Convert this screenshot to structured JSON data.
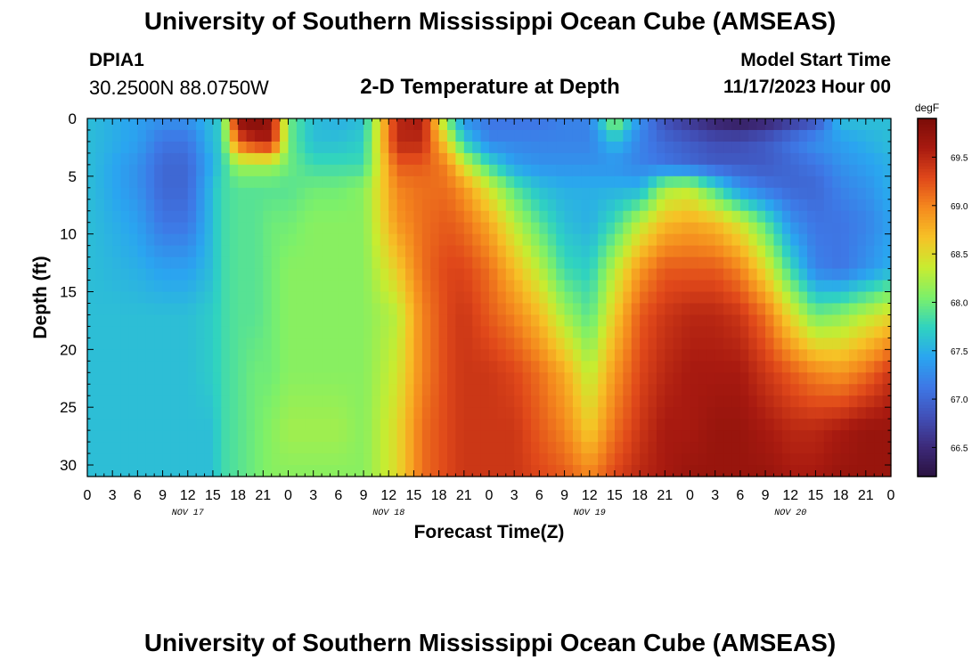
{
  "header": {
    "title": "University of Southern Mississippi Ocean Cube (AMSEAS)",
    "station": "DPIA1",
    "coords": "30.2500N  88.0750W",
    "subtitle": "2-D Temperature at Depth",
    "model_start_label": "Model Start Time",
    "model_start_value": "11/17/2023 Hour 00"
  },
  "footer": {
    "title": "University of Southern Mississippi Ocean Cube (AMSEAS)"
  },
  "chart_data": {
    "type": "heatmap",
    "xlabel": "Forecast Time(Z)",
    "ylabel": "Depth (ft)",
    "x_range_hours": [
      0,
      96
    ],
    "x_tick_labels": [
      "0",
      "3",
      "6",
      "9",
      "12",
      "15",
      "18",
      "21",
      "0",
      "3",
      "6",
      "9",
      "12",
      "15",
      "18",
      "21",
      "0",
      "3",
      "6",
      "9",
      "12",
      "15",
      "18",
      "21",
      "0",
      "3",
      "6",
      "9",
      "12",
      "15",
      "18",
      "21",
      "0"
    ],
    "day_labels": [
      "NOV 17",
      "NOV 18",
      "NOV 19",
      "NOV 20"
    ],
    "y_range_ft": [
      0,
      31
    ],
    "y_ticks": [
      0,
      5,
      10,
      15,
      20,
      25,
      30
    ],
    "colorbar": {
      "unit": "degF",
      "min": 66.2,
      "max": 69.9,
      "ticks": [
        66.5,
        67.0,
        67.5,
        68.0,
        68.5,
        69.0,
        69.5
      ],
      "colors": [
        "#2a1240",
        "#3d2a7a",
        "#4150b8",
        "#3e78e6",
        "#2aa5f0",
        "#2fd3c0",
        "#7cf06a",
        "#c8ec30",
        "#f6c226",
        "#f58a1e",
        "#e0481a",
        "#a81a10",
        "#7a0c08"
      ]
    },
    "grid": {
      "hours": [
        0,
        6,
        9,
        12,
        15,
        16,
        18,
        20,
        22,
        24,
        27,
        30,
        33,
        37,
        40,
        43,
        45,
        48,
        51,
        54,
        57,
        60,
        63,
        66,
        69,
        72,
        75,
        78,
        81,
        84,
        87,
        90,
        93,
        96
      ],
      "depths_ft": [
        0,
        2,
        4,
        6,
        9,
        13,
        17,
        22,
        27,
        31
      ],
      "temperature_degF": [
        [
          67.6,
          67.4,
          67.3,
          67.3,
          67.6,
          67.7,
          69.8,
          69.9,
          69.7,
          68.0,
          67.6,
          67.5,
          67.6,
          69.5,
          69.6,
          68.0,
          67.3,
          67.1,
          67.1,
          67.1,
          67.2,
          67.2,
          68.2,
          67.3,
          66.8,
          66.6,
          66.4,
          66.3,
          66.4,
          66.6,
          66.8,
          67.6,
          67.6,
          67.6
        ],
        [
          67.6,
          67.4,
          67.1,
          67.1,
          67.6,
          67.7,
          69.2,
          69.5,
          69.6,
          68.0,
          67.6,
          67.6,
          67.7,
          69.5,
          69.5,
          68.5,
          67.7,
          67.2,
          67.2,
          67.2,
          67.2,
          67.2,
          67.6,
          67.2,
          67.0,
          66.9,
          66.8,
          66.8,
          66.9,
          67.1,
          67.3,
          67.4,
          67.5,
          67.6
        ],
        [
          67.6,
          67.3,
          67.0,
          67.0,
          67.5,
          67.7,
          68.2,
          68.2,
          68.2,
          68.0,
          67.8,
          67.8,
          67.8,
          69.2,
          69.2,
          69.0,
          68.4,
          67.8,
          67.4,
          67.3,
          67.3,
          67.3,
          67.3,
          67.2,
          67.1,
          67.0,
          66.9,
          66.9,
          66.9,
          67.0,
          67.1,
          67.3,
          67.4,
          67.5
        ],
        [
          67.6,
          67.3,
          67.0,
          67.0,
          67.6,
          67.8,
          67.9,
          67.9,
          67.9,
          67.9,
          68.0,
          68.0,
          68.1,
          69.0,
          69.1,
          69.1,
          68.9,
          68.4,
          67.9,
          67.6,
          67.5,
          67.5,
          67.5,
          67.5,
          68.2,
          68.3,
          67.8,
          67.3,
          67.1,
          67.0,
          67.0,
          67.2,
          67.3,
          67.5
        ],
        [
          67.6,
          67.4,
          67.1,
          67.1,
          67.6,
          67.8,
          67.9,
          67.9,
          68.0,
          68.0,
          68.1,
          68.1,
          68.1,
          68.9,
          69.1,
          69.2,
          69.1,
          68.8,
          68.3,
          67.9,
          67.6,
          67.5,
          67.8,
          68.3,
          68.7,
          68.8,
          68.7,
          68.4,
          67.9,
          67.3,
          67.1,
          67.1,
          67.2,
          67.4
        ],
        [
          67.6,
          67.5,
          67.4,
          67.4,
          67.6,
          67.8,
          67.9,
          67.9,
          68.0,
          68.1,
          68.1,
          68.1,
          68.1,
          68.6,
          69.1,
          69.3,
          69.3,
          69.1,
          68.7,
          68.3,
          67.8,
          67.7,
          68.3,
          68.9,
          69.2,
          69.2,
          69.2,
          69.0,
          68.5,
          67.8,
          67.2,
          67.1,
          67.3,
          67.5
        ],
        [
          67.6,
          67.6,
          67.6,
          67.6,
          67.7,
          67.8,
          67.9,
          67.9,
          68.0,
          68.1,
          68.1,
          68.1,
          68.1,
          68.3,
          69.0,
          69.3,
          69.4,
          69.2,
          69.0,
          68.7,
          68.2,
          67.9,
          68.6,
          69.2,
          69.4,
          69.5,
          69.5,
          69.4,
          69.1,
          68.5,
          68.0,
          68.1,
          68.3,
          68.5
        ],
        [
          67.6,
          67.6,
          67.6,
          67.6,
          67.7,
          67.8,
          67.9,
          68.0,
          68.0,
          68.1,
          68.1,
          68.1,
          68.1,
          68.4,
          69.0,
          69.3,
          69.4,
          69.4,
          69.3,
          69.1,
          68.8,
          68.3,
          68.9,
          69.3,
          69.5,
          69.6,
          69.6,
          69.6,
          69.4,
          69.2,
          69.0,
          68.9,
          69.1,
          69.4
        ],
        [
          67.6,
          67.6,
          67.6,
          67.6,
          67.6,
          67.8,
          67.9,
          68.0,
          68.1,
          68.2,
          68.2,
          68.2,
          68.1,
          68.5,
          69.1,
          69.3,
          69.4,
          69.4,
          69.4,
          69.2,
          69.0,
          68.6,
          69.1,
          69.4,
          69.6,
          69.6,
          69.7,
          69.7,
          69.6,
          69.5,
          69.5,
          69.6,
          69.7,
          69.7
        ],
        [
          67.6,
          67.6,
          67.6,
          67.6,
          67.6,
          67.8,
          67.9,
          68.0,
          68.1,
          68.1,
          68.1,
          68.1,
          68.1,
          68.5,
          69.1,
          69.3,
          69.4,
          69.4,
          69.4,
          69.3,
          69.2,
          69.0,
          69.3,
          69.5,
          69.6,
          69.7,
          69.7,
          69.7,
          69.7,
          69.6,
          69.6,
          69.7,
          69.7,
          69.7
        ]
      ]
    }
  }
}
